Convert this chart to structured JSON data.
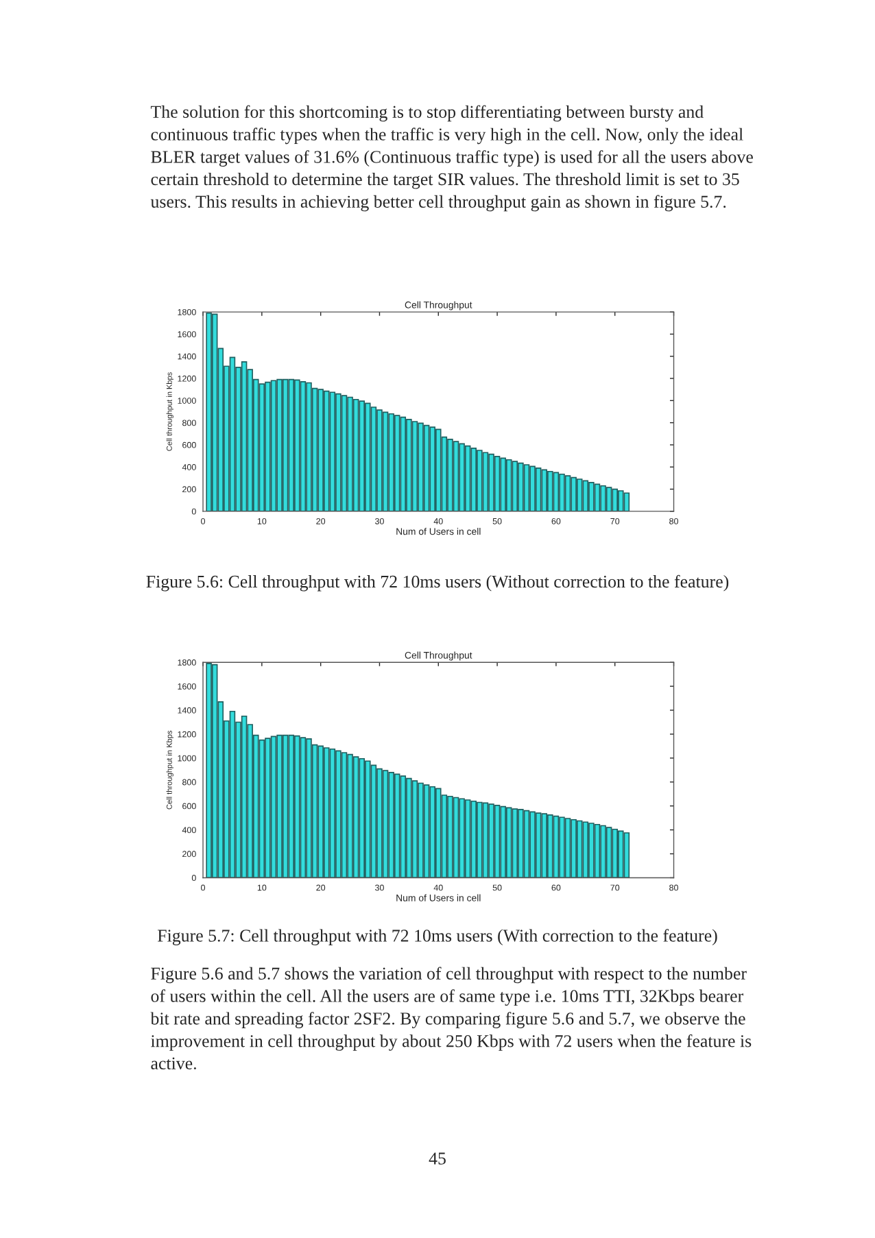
{
  "chart_data": [
    {
      "type": "bar",
      "title": "Cell Throughput",
      "xlabel": "Num of Users in cell",
      "ylabel": "Cell throughput in Kbps",
      "x": [
        1,
        2,
        3,
        4,
        5,
        6,
        7,
        8,
        9,
        10,
        11,
        12,
        13,
        14,
        15,
        16,
        17,
        18,
        19,
        20,
        21,
        22,
        23,
        24,
        25,
        26,
        27,
        28,
        29,
        30,
        31,
        32,
        33,
        34,
        35,
        36,
        37,
        38,
        39,
        40,
        41,
        42,
        43,
        44,
        45,
        46,
        47,
        48,
        49,
        50,
        51,
        52,
        53,
        54,
        55,
        56,
        57,
        58,
        59,
        60,
        61,
        62,
        63,
        64,
        65,
        66,
        67,
        68,
        69,
        70,
        71,
        72
      ],
      "series": [
        {
          "color": "#33dcdc",
          "values": [
            1790,
            1780,
            1470,
            1310,
            1390,
            1300,
            1350,
            1280,
            1190,
            1150,
            1165,
            1180,
            1190,
            1190,
            1190,
            1185,
            1170,
            1160,
            1110,
            1100,
            1085,
            1075,
            1060,
            1045,
            1030,
            1010,
            995,
            975,
            940,
            915,
            895,
            880,
            865,
            850,
            830,
            810,
            795,
            775,
            760,
            740,
            670,
            650,
            630,
            610,
            590,
            570,
            550,
            530,
            515,
            495,
            480,
            465,
            450,
            435,
            420,
            405,
            390,
            375,
            360,
            350,
            335,
            320,
            305,
            290,
            275,
            260,
            245,
            230,
            215,
            200,
            185,
            165
          ]
        }
      ],
      "xlim": [
        0,
        80
      ],
      "xticks": [
        0,
        10,
        20,
        30,
        40,
        50,
        60,
        70,
        80
      ],
      "ylim": [
        0,
        1800
      ],
      "yticks": [
        0,
        200,
        400,
        600,
        800,
        1000,
        1200,
        1400,
        1600,
        1800
      ],
      "annotations": [
        "The solution for this shortcoming is to stop differentiating between bursty and\ncontinuous traffic types when the traffic is very high in the cell. Now, only the ideal\nBLER target values of 31.6% (Continuous traffic type) is used for all the users above\ncertain threshold to determine the target SIR values. The threshold limit is set to 35\nusers. This results in achieving better cell throughput gain as shown in figure 5.7.",
        "Figure 5.6: Cell throughput with 72 10ms users (Without correction to the feature)"
      ]
    },
    {
      "type": "bar",
      "title": "Cell Throughput",
      "xlabel": "Num of Users in cell",
      "ylabel": "Cell throughput in Kbps",
      "x": [
        1,
        2,
        3,
        4,
        5,
        6,
        7,
        8,
        9,
        10,
        11,
        12,
        13,
        14,
        15,
        16,
        17,
        18,
        19,
        20,
        21,
        22,
        23,
        24,
        25,
        26,
        27,
        28,
        29,
        30,
        31,
        32,
        33,
        34,
        35,
        36,
        37,
        38,
        39,
        40,
        41,
        42,
        43,
        44,
        45,
        46,
        47,
        48,
        49,
        50,
        51,
        52,
        53,
        54,
        55,
        56,
        57,
        58,
        59,
        60,
        61,
        62,
        63,
        64,
        65,
        66,
        67,
        68,
        69,
        70,
        71,
        72
      ],
      "series": [
        {
          "color": "#33dcdc",
          "values": [
            1790,
            1780,
            1470,
            1310,
            1390,
            1300,
            1350,
            1280,
            1190,
            1150,
            1165,
            1180,
            1190,
            1190,
            1190,
            1185,
            1170,
            1160,
            1110,
            1100,
            1085,
            1075,
            1060,
            1045,
            1030,
            1010,
            995,
            975,
            940,
            910,
            895,
            880,
            865,
            850,
            830,
            810,
            790,
            775,
            760,
            745,
            690,
            680,
            670,
            660,
            650,
            640,
            630,
            625,
            615,
            605,
            595,
            585,
            575,
            570,
            560,
            550,
            540,
            535,
            525,
            515,
            505,
            495,
            485,
            475,
            465,
            455,
            445,
            435,
            420,
            405,
            390,
            375
          ]
        }
      ],
      "xlim": [
        0,
        80
      ],
      "xticks": [
        0,
        10,
        20,
        30,
        40,
        50,
        60,
        70,
        80
      ],
      "ylim": [
        0,
        1800
      ],
      "yticks": [
        0,
        200,
        400,
        600,
        800,
        1000,
        1200,
        1400,
        1600,
        1800
      ],
      "annotations": [
        "Figure 5.7: Cell throughput with 72 10ms users (With correction to the feature)",
        "Figure 5.6 and 5.7 shows the variation of cell throughput with respect to the number\nof users within the cell. All the users are of same type i.e. 10ms TTI, 32Kbps bearer\nbit rate and spreading factor 2SF2. By comparing figure 5.6 and 5.7, we observe the\nimprovement in cell throughput by about 250 Kbps with 72 users when the feature is\nactive.",
        "45"
      ]
    }
  ]
}
